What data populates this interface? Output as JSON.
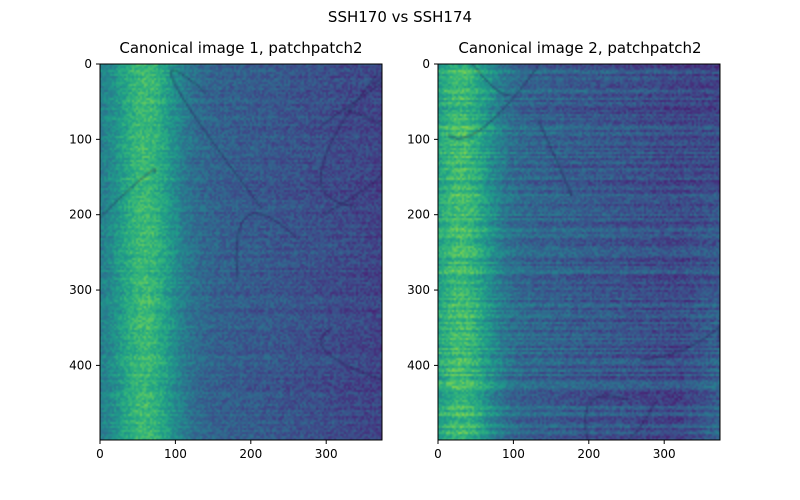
{
  "figure": {
    "suptitle": "SSH170 vs SSH174"
  },
  "chart_data": [
    {
      "type": "heatmap",
      "title": "Canonical image 1, patchpatch2",
      "xlabel": "",
      "ylabel": "",
      "xlim": [
        0,
        374
      ],
      "ylim": [
        499,
        0
      ],
      "x_ticks": [
        "0",
        "100",
        "200",
        "300"
      ],
      "y_ticks": [
        "0",
        "100",
        "200",
        "300",
        "400"
      ],
      "colormap": "viridis",
      "colorbar": false,
      "bright_band_center_x": 60
    },
    {
      "type": "heatmap",
      "title": "Canonical image 2, patchpatch2",
      "xlabel": "",
      "ylabel": "",
      "xlim": [
        0,
        374
      ],
      "ylim": [
        499,
        0
      ],
      "x_ticks": [
        "0",
        "100",
        "200",
        "300"
      ],
      "y_ticks": [
        "0",
        "100",
        "200",
        "300",
        "400"
      ],
      "colormap": "viridis",
      "colorbar": false,
      "bright_band_center_x": 30
    }
  ]
}
